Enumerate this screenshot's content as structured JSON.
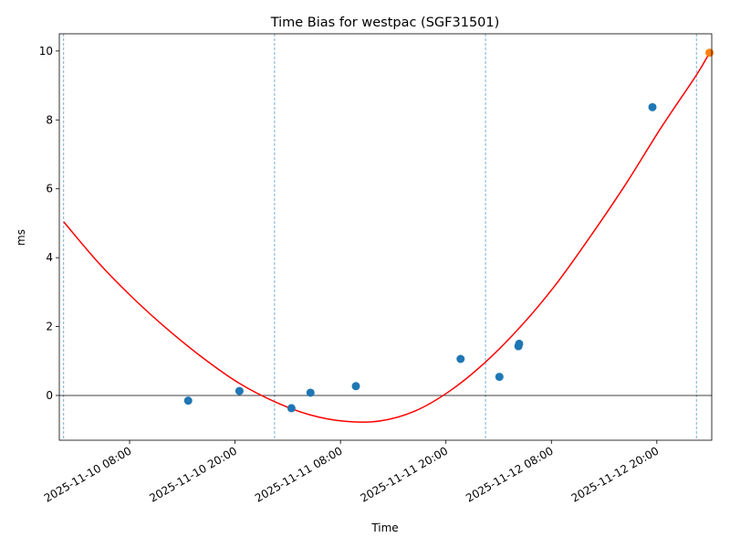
{
  "chart_data": {
    "type": "scatter",
    "title": "Time Bias for westpac (SGF31501)",
    "xlabel": "Time",
    "ylabel": "ms",
    "x_type": "datetime",
    "xlim": [
      "2025-11-10 00:00",
      "2025-11-13 02:15"
    ],
    "ylim": [
      -1.3,
      10.5
    ],
    "x_ticks": [
      "2025-11-10 08:00",
      "2025-11-10 20:00",
      "2025-11-11 08:00",
      "2025-11-11 20:00",
      "2025-11-12 08:00",
      "2025-11-12 20:00"
    ],
    "y_ticks": [
      0,
      2,
      4,
      6,
      8,
      10
    ],
    "grid": false,
    "zero_line": 0,
    "vertical_lines": [
      "2025-11-10 00:30",
      "2025-11-11 00:30",
      "2025-11-12 00:30",
      "2025-11-13 00:30"
    ],
    "series": [
      {
        "kind": "scatter",
        "color": "#1f77b4",
        "points": [
          {
            "x": "2025-11-10 14:40",
            "y": -0.15
          },
          {
            "x": "2025-11-10 20:30",
            "y": 0.13
          },
          {
            "x": "2025-11-11 02:25",
            "y": -0.37
          },
          {
            "x": "2025-11-11 04:35",
            "y": 0.08
          },
          {
            "x": "2025-11-11 09:45",
            "y": 0.27
          },
          {
            "x": "2025-11-11 21:40",
            "y": 1.06
          },
          {
            "x": "2025-11-12 02:05",
            "y": 0.54
          },
          {
            "x": "2025-11-12 04:15",
            "y": 1.43
          },
          {
            "x": "2025-11-12 04:20",
            "y": 1.5
          },
          {
            "x": "2025-11-12 19:30",
            "y": 8.37
          }
        ]
      },
      {
        "kind": "scatter",
        "color": "#ff7f0e",
        "points": [
          {
            "x": "2025-11-13 02:00",
            "y": 9.95
          }
        ]
      },
      {
        "kind": "line",
        "color": "#ff0000",
        "points": [
          {
            "x": "2025-11-10 00:30",
            "y": 5.04
          },
          {
            "x": "2025-11-10 04:30",
            "y": 3.84
          },
          {
            "x": "2025-11-10 08:30",
            "y": 2.8
          },
          {
            "x": "2025-11-10 12:30",
            "y": 1.88
          },
          {
            "x": "2025-11-10 16:30",
            "y": 1.06
          },
          {
            "x": "2025-11-10 20:30",
            "y": 0.35
          },
          {
            "x": "2025-11-11 00:30",
            "y": -0.18
          },
          {
            "x": "2025-11-11 04:30",
            "y": -0.56
          },
          {
            "x": "2025-11-11 08:30",
            "y": -0.75
          },
          {
            "x": "2025-11-11 12:30",
            "y": -0.74
          },
          {
            "x": "2025-11-11 16:30",
            "y": -0.45
          },
          {
            "x": "2025-11-11 20:30",
            "y": 0.14
          },
          {
            "x": "2025-11-12 00:30",
            "y": 0.97
          },
          {
            "x": "2025-11-12 04:30",
            "y": 2.0
          },
          {
            "x": "2025-11-12 08:30",
            "y": 3.22
          },
          {
            "x": "2025-11-12 12:30",
            "y": 4.64
          },
          {
            "x": "2025-11-12 16:30",
            "y": 6.15
          },
          {
            "x": "2025-11-12 20:30",
            "y": 7.78
          },
          {
            "x": "2025-11-13 00:30",
            "y": 9.3
          },
          {
            "x": "2025-11-13 02:00",
            "y": 9.95
          }
        ]
      }
    ]
  }
}
